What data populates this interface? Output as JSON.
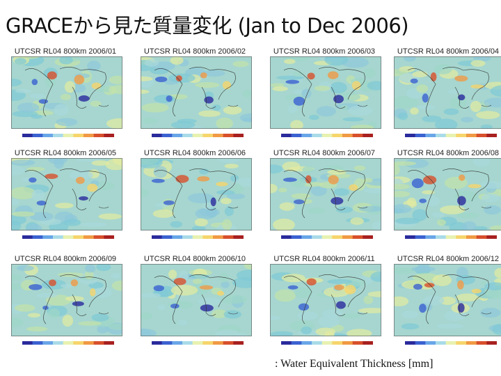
{
  "title": "GRACEから見た質量変化 (Jan to Dec 2006)",
  "panels": [
    {
      "label": "UTCSR RL04 800km 2006/01"
    },
    {
      "label": "UTCSR RL04 800km 2006/02"
    },
    {
      "label": "UTCSR RL04 800km 2006/03"
    },
    {
      "label": "UTCSR RL04 800km 2006/04"
    },
    {
      "label": "UTCSR RL04 800km 2006/05"
    },
    {
      "label": "UTCSR RL04 800km 2006/06"
    },
    {
      "label": "UTCSR RL04 800km 2006/07"
    },
    {
      "label": "UTCSR RL04 800km 2006/08"
    },
    {
      "label": "UTCSR RL04 800km 2006/09"
    },
    {
      "label": "UTCSR RL04 800km 2006/10"
    },
    {
      "label": "UTCSR RL04 800km 2006/11"
    },
    {
      "label": "UTCSR RL04 800km 2006/12"
    }
  ],
  "colorbar_colors": [
    "#2a2a9c",
    "#3b62d1",
    "#69a6e8",
    "#a9dbe8",
    "#e8f2b0",
    "#f6d56c",
    "#f09a45",
    "#d8502c",
    "#a82020"
  ],
  "footer": ": Water Equivalent Thickness [mm]"
}
